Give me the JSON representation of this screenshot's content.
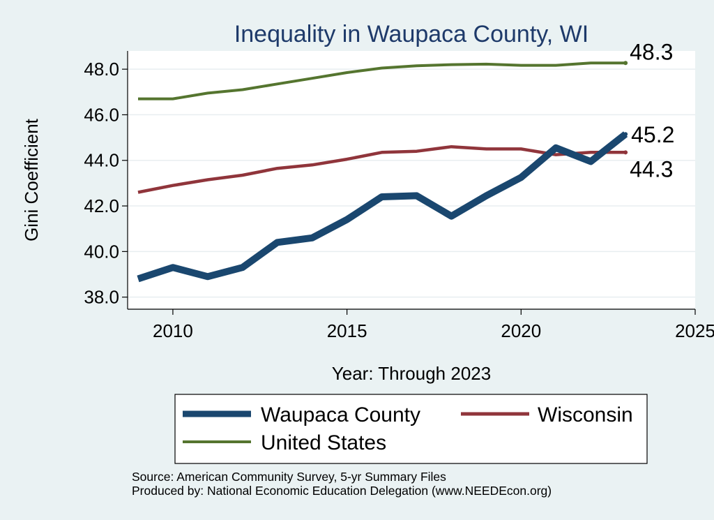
{
  "chart_data": {
    "type": "line",
    "title": "Inequality in Waupaca County, WI",
    "xlabel": "Year: Through 2023",
    "ylabel": "Gini Coefficient",
    "xlim": [
      2008.7,
      2025
    ],
    "ylim": [
      37.5,
      48.8
    ],
    "xticks": [
      2010,
      2015,
      2020,
      2025
    ],
    "yticks": [
      {
        "value": 38,
        "label": "38.0"
      },
      {
        "value": 40,
        "label": "40.0"
      },
      {
        "value": 42,
        "label": "42.0"
      },
      {
        "value": 44,
        "label": "44.0"
      },
      {
        "value": 46,
        "label": "46.0"
      },
      {
        "value": 48,
        "label": "48.0"
      }
    ],
    "grid": true,
    "legend_position": "bottom",
    "series": [
      {
        "name": "Waupaca County",
        "color": "#1a476f",
        "end_label": "45.2",
        "points": [
          [
            2009,
            38.8
          ],
          [
            2010,
            39.3
          ],
          [
            2011,
            38.9
          ],
          [
            2012,
            39.3
          ],
          [
            2013,
            40.4
          ],
          [
            2014,
            40.6
          ],
          [
            2015,
            41.4
          ],
          [
            2016,
            42.4
          ],
          [
            2017,
            42.45
          ],
          [
            2018,
            41.55
          ],
          [
            2019,
            42.45
          ],
          [
            2020,
            43.25
          ],
          [
            2021,
            44.55
          ],
          [
            2022,
            43.95
          ],
          [
            2023,
            45.15
          ]
        ]
      },
      {
        "name": "Wisconsin",
        "color": "#90353b",
        "end_label": "44.3",
        "points": [
          [
            2009,
            42.6
          ],
          [
            2010,
            42.9
          ],
          [
            2011,
            43.15
          ],
          [
            2012,
            43.35
          ],
          [
            2013,
            43.65
          ],
          [
            2014,
            43.8
          ],
          [
            2015,
            44.05
          ],
          [
            2016,
            44.35
          ],
          [
            2017,
            44.4
          ],
          [
            2018,
            44.6
          ],
          [
            2019,
            44.5
          ],
          [
            2020,
            44.5
          ],
          [
            2021,
            44.25
          ],
          [
            2022,
            44.35
          ],
          [
            2023,
            44.35
          ]
        ]
      },
      {
        "name": "United States",
        "color": "#55752f",
        "end_label": "48.3",
        "points": [
          [
            2009,
            46.7
          ],
          [
            2010,
            46.7
          ],
          [
            2011,
            46.95
          ],
          [
            2012,
            47.1
          ],
          [
            2013,
            47.35
          ],
          [
            2014,
            47.6
          ],
          [
            2015,
            47.85
          ],
          [
            2016,
            48.05
          ],
          [
            2017,
            48.15
          ],
          [
            2018,
            48.2
          ],
          [
            2019,
            48.22
          ],
          [
            2020,
            48.17
          ],
          [
            2021,
            48.17
          ],
          [
            2022,
            48.27
          ],
          [
            2023,
            48.27
          ]
        ]
      }
    ],
    "source_lines": [
      "Source: American Community Survey, 5-yr Summary Files",
      "Produced by: National Economic Education Delegation (www.NEEDEcon.org)"
    ]
  }
}
